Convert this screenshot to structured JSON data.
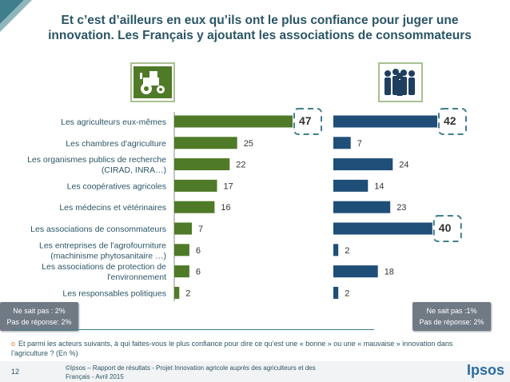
{
  "title": "Et c’est d’ailleurs en eux qu’ils ont le plus confiance pour juger une innovation. Les Français y ajoutant les associations de consommateurs",
  "icons": {
    "left": "tractor-icon",
    "right": "people-group-icon"
  },
  "colors": {
    "title": "#2b5566",
    "bar_left": "#4f7a28",
    "bar_right": "#1f4e79",
    "highlight_border": "#3f7f8c",
    "accent": "#e07b20"
  },
  "notes": {
    "left": {
      "line1": "Ne sait pas : 2%",
      "line2": "Pas de réponse: 2%"
    },
    "right": {
      "line1": "Ne sait pas :1%",
      "line2": "Pas de réponse: 2%"
    }
  },
  "question": "Et parmi les acteurs suivants, à qui faites-vous le plus confiance pour dire ce qu’est une « bonne » ou une « mauvaise » innovation dans l’agriculture ? (En %)",
  "footer": {
    "page_number": "12",
    "source": "©Ipsos – Rapport de résultats - Projet Innovation agricole auprès des agriculteurs et des Français - Avril 2015",
    "logo": "Ipsos"
  },
  "chart_data": {
    "type": "bar",
    "orientation": "horizontal",
    "categories": [
      [
        "Les agriculteurs eux-mêmes"
      ],
      [
        "Les chambres d'agriculture"
      ],
      [
        "Les organismes publics de recherche",
        "(CIRAD, INRA…)"
      ],
      [
        "Les coopératives agricoles"
      ],
      [
        "Les médecins et vétérinaires"
      ],
      [
        "Les associations de consommateurs"
      ],
      [
        "Les entreprises de l'agrofourniture",
        "(machinisme phytosanitaire …)"
      ],
      [
        "Les associations de protection de",
        "l'environnement"
      ],
      [
        "Les responsables politiques"
      ]
    ],
    "series": [
      {
        "values": [
          47,
          25,
          22,
          17,
          16,
          7,
          6,
          6,
          2
        ],
        "highlight": [
          0
        ]
      },
      {
        "values": [
          42,
          7,
          24,
          14,
          23,
          40,
          2,
          18,
          2
        ],
        "highlight": [
          0,
          5
        ]
      }
    ],
    "xlim": [
      0,
      47
    ]
  }
}
